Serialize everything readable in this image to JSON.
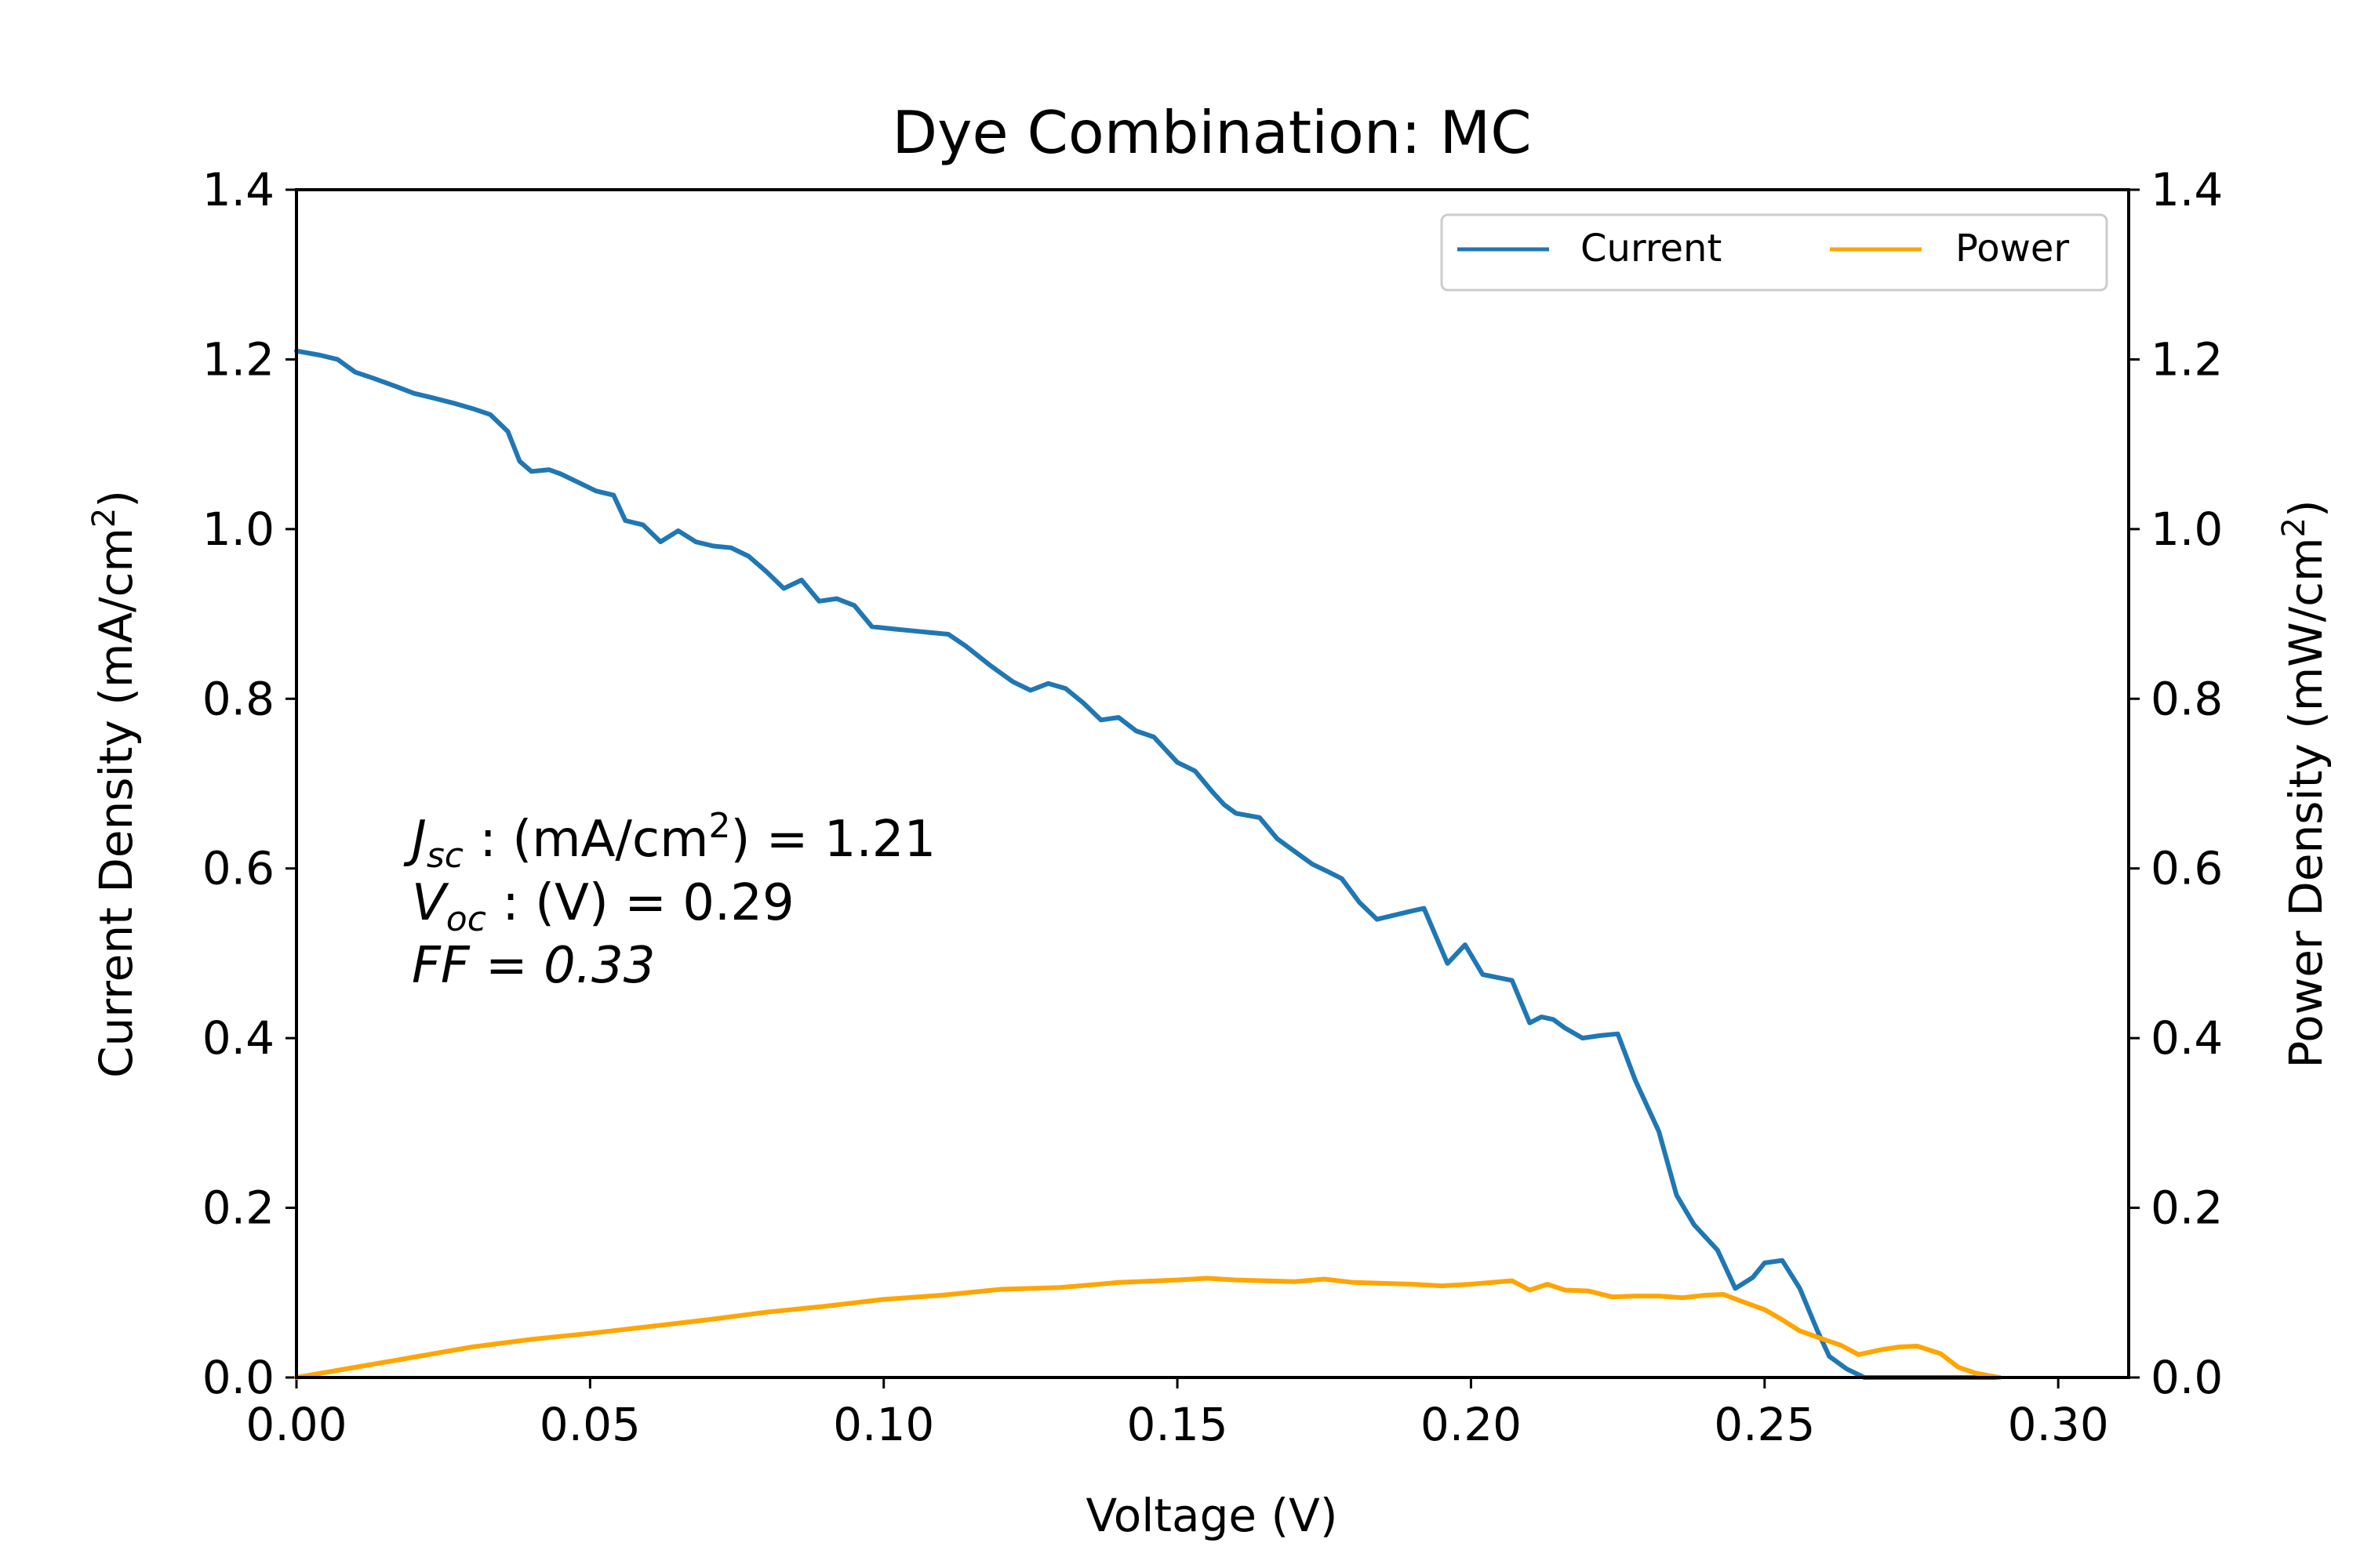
{
  "chart_data": {
    "type": "line",
    "title": "Dye Combination: MC",
    "xlabel": "Voltage (V)",
    "ylabel_left": "Current Density (mA/cm",
    "ylabel_left_sup": "2",
    "ylabel_left_close": ")",
    "ylabel_right": "Power Density (mW/cm",
    "ylabel_right_sup": "2",
    "ylabel_right_close": ")",
    "xlim": [
      0.0,
      0.312
    ],
    "ylim": [
      0.0,
      1.4
    ],
    "x_ticks": [
      "0.00",
      "0.05",
      "0.10",
      "0.15",
      "0.20",
      "0.25",
      "0.30"
    ],
    "y_ticks": [
      "0.0",
      "0.2",
      "0.4",
      "0.6",
      "0.8",
      "1.0",
      "1.2",
      "1.4"
    ],
    "grid": false,
    "legend_placement": "top-right",
    "annotations": {
      "jsc": {
        "main": "J",
        "sub": "sc",
        "rest": " : (mA/cm",
        "sup": "2",
        "close": ") = 1.21"
      },
      "voc": {
        "main": "V",
        "sub": "oc",
        "rest": " : (V) = 0.29"
      },
      "ff": {
        "text": "FF = 0.33"
      }
    },
    "series": [
      {
        "name": "Current",
        "color": "#1f77b4",
        "axis": "left",
        "x": [
          0.0,
          0.004,
          0.007,
          0.01,
          0.013,
          0.017,
          0.02,
          0.023,
          0.027,
          0.03,
          0.033,
          0.036,
          0.038,
          0.04,
          0.043,
          0.045,
          0.048,
          0.051,
          0.054,
          0.056,
          0.059,
          0.062,
          0.065,
          0.068,
          0.071,
          0.074,
          0.077,
          0.08,
          0.083,
          0.086,
          0.089,
          0.092,
          0.095,
          0.098,
          0.102,
          0.105,
          0.108,
          0.111,
          0.114,
          0.118,
          0.122,
          0.125,
          0.128,
          0.131,
          0.134,
          0.137,
          0.14,
          0.143,
          0.146,
          0.15,
          0.153,
          0.156,
          0.158,
          0.16,
          0.164,
          0.167,
          0.17,
          0.173,
          0.176,
          0.178,
          0.181,
          0.184,
          0.187,
          0.19,
          0.192,
          0.196,
          0.199,
          0.202,
          0.207,
          0.21,
          0.212,
          0.214,
          0.216,
          0.219,
          0.222,
          0.225,
          0.228,
          0.232,
          0.235,
          0.238,
          0.242,
          0.245,
          0.248,
          0.25,
          0.253,
          0.256,
          0.259,
          0.261,
          0.264,
          0.267,
          0.27,
          0.273,
          0.276,
          0.279,
          0.282,
          0.285,
          0.288,
          0.29
        ],
        "y": [
          1.21,
          1.205,
          1.2,
          1.185,
          1.178,
          1.168,
          1.16,
          1.155,
          1.148,
          1.142,
          1.135,
          1.115,
          1.08,
          1.068,
          1.07,
          1.065,
          1.055,
          1.045,
          1.04,
          1.01,
          1.005,
          0.985,
          0.998,
          0.985,
          0.98,
          0.978,
          0.968,
          0.95,
          0.93,
          0.94,
          0.915,
          0.918,
          0.91,
          0.885,
          0.882,
          0.88,
          0.878,
          0.876,
          0.862,
          0.84,
          0.82,
          0.81,
          0.818,
          0.812,
          0.795,
          0.775,
          0.778,
          0.762,
          0.755,
          0.725,
          0.715,
          0.69,
          0.675,
          0.665,
          0.66,
          0.635,
          0.62,
          0.605,
          0.595,
          0.588,
          0.56,
          0.54,
          0.545,
          0.55,
          0.553,
          0.488,
          0.51,
          0.475,
          0.468,
          0.418,
          0.425,
          0.422,
          0.412,
          0.4,
          0.403,
          0.405,
          0.35,
          0.29,
          0.215,
          0.18,
          0.15,
          0.105,
          0.118,
          0.135,
          0.138,
          0.105,
          0.055,
          0.025,
          0.01,
          0.0,
          0.0,
          0.0,
          0.0,
          0.0,
          0.0,
          0.0,
          0.0,
          0.0
        ]
      },
      {
        "name": "Power",
        "color": "#ffa500",
        "axis": "right",
        "x": [
          0.0,
          0.01,
          0.02,
          0.03,
          0.04,
          0.05,
          0.06,
          0.07,
          0.08,
          0.09,
          0.1,
          0.11,
          0.12,
          0.13,
          0.14,
          0.15,
          0.155,
          0.16,
          0.17,
          0.175,
          0.18,
          0.19,
          0.195,
          0.2,
          0.207,
          0.21,
          0.213,
          0.216,
          0.22,
          0.224,
          0.228,
          0.232,
          0.236,
          0.24,
          0.243,
          0.246,
          0.25,
          0.253,
          0.256,
          0.26,
          0.263,
          0.266,
          0.27,
          0.273,
          0.276,
          0.28,
          0.283,
          0.286,
          0.29
        ],
        "y": [
          0.0,
          0.012,
          0.024,
          0.036,
          0.045,
          0.052,
          0.06,
          0.068,
          0.077,
          0.084,
          0.092,
          0.097,
          0.104,
          0.106,
          0.112,
          0.115,
          0.117,
          0.115,
          0.113,
          0.116,
          0.112,
          0.11,
          0.108,
          0.11,
          0.114,
          0.103,
          0.11,
          0.103,
          0.102,
          0.095,
          0.096,
          0.096,
          0.094,
          0.097,
          0.098,
          0.09,
          0.08,
          0.068,
          0.055,
          0.045,
          0.038,
          0.027,
          0.033,
          0.036,
          0.037,
          0.028,
          0.012,
          0.005,
          0.0
        ]
      }
    ]
  }
}
